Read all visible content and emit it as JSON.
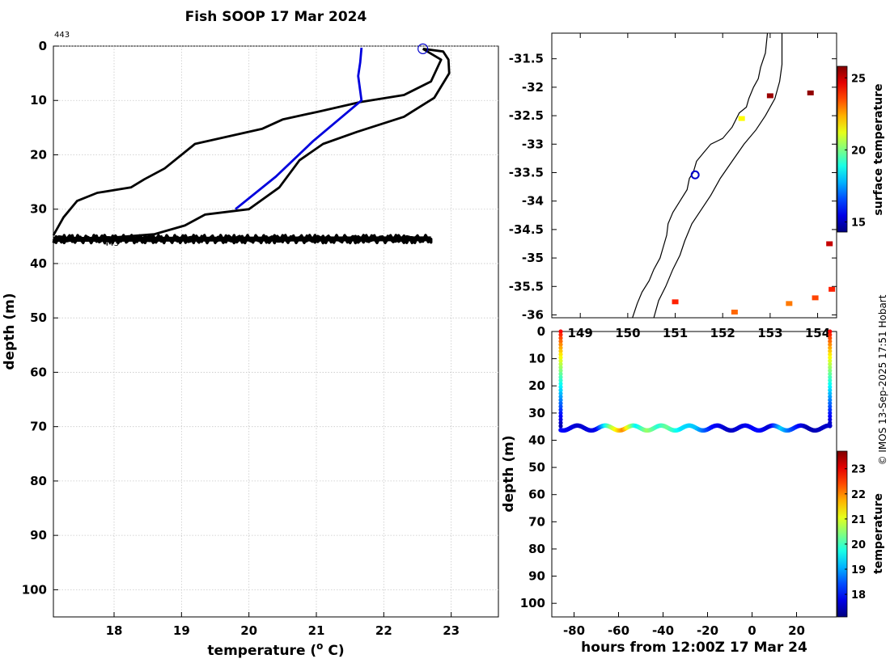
{
  "title": "Fish SOOP 17 Mar 2024",
  "credit": "© IMOS 13-Sep-2025 17:51 Hobart",
  "profile_tag": "443",
  "profile_tag_low": "443",
  "chart_data": [
    {
      "id": "profile",
      "type": "line",
      "title": "Fish SOOP 17 Mar 2024",
      "xlabel": "temperature (o C)",
      "ylabel": "depth (m)",
      "xlim": [
        17.1,
        23.7
      ],
      "ylim": [
        105,
        0
      ],
      "xticks": [
        18,
        19,
        20,
        21,
        22,
        23
      ],
      "yticks": [
        0,
        10,
        20,
        30,
        40,
        50,
        60,
        70,
        80,
        90,
        100
      ],
      "grid": true,
      "surface_marker": {
        "temperature": 22.58,
        "depth": 0.5
      },
      "series": [
        {
          "color": "#000000",
          "points": [
            [
              22.58,
              0.5
            ],
            [
              22.88,
              1.0
            ],
            [
              22.96,
              2.5
            ],
            [
              22.97,
              5.0
            ],
            [
              22.75,
              9.5
            ],
            [
              22.3,
              13.0
            ],
            [
              21.6,
              15.8
            ],
            [
              21.1,
              18.0
            ],
            [
              20.75,
              21.0
            ],
            [
              20.45,
              26.0
            ],
            [
              20.0,
              30.0
            ],
            [
              19.35,
              31.0
            ],
            [
              19.05,
              33.0
            ],
            [
              18.6,
              34.6
            ],
            [
              17.8,
              35.4
            ],
            [
              17.3,
              35.6
            ],
            [
              17.15,
              35.2
            ]
          ]
        },
        {
          "color": "#000000",
          "points": [
            [
              17.1,
              34.8
            ],
            [
              17.25,
              31.5
            ],
            [
              17.45,
              28.5
            ],
            [
              17.75,
              27.0
            ],
            [
              18.25,
              26.0
            ],
            [
              18.45,
              24.5
            ],
            [
              18.75,
              22.5
            ],
            [
              19.2,
              18.0
            ],
            [
              20.2,
              15.2
            ],
            [
              20.5,
              13.5
            ],
            [
              21.05,
              12.0
            ],
            [
              21.65,
              10.3
            ],
            [
              22.3,
              9.0
            ],
            [
              22.7,
              6.5
            ],
            [
              22.85,
              2.5
            ],
            [
              22.58,
              0.5
            ]
          ]
        },
        {
          "color": "#0000dd",
          "points": [
            [
              21.67,
              0.3
            ],
            [
              21.65,
              3.0
            ],
            [
              21.62,
              5.5
            ],
            [
              21.67,
              10.0
            ],
            [
              20.95,
              17.5
            ],
            [
              20.4,
              24.0
            ],
            [
              19.8,
              30.0
            ]
          ]
        }
      ],
      "bottom_band": {
        "depth_min": 34.8,
        "depth_max": 36.2,
        "t_min": 17.1,
        "t_max": 22.7
      }
    },
    {
      "id": "map",
      "type": "scatter",
      "xticks": [
        149,
        150,
        151,
        152,
        153,
        154
      ],
      "yticks": [
        -31.5,
        -32,
        -32.5,
        -33,
        -33.5,
        -34,
        -34.5,
        -35,
        -35.5,
        -36
      ],
      "xlim": [
        148.4,
        154.4
      ],
      "ylim": [
        -36.05,
        -31.05
      ],
      "vessel_position": {
        "lon": 151.42,
        "lat": -33.54
      },
      "colorbar": {
        "label": "surface temperature",
        "ticks": [
          15,
          20,
          25
        ],
        "range": [
          14.3,
          25.8
        ]
      },
      "sst_patches": [
        {
          "lon": 153.0,
          "lat": -32.15,
          "temp": 25.5
        },
        {
          "lon": 153.85,
          "lat": -32.1,
          "temp": 25.6
        },
        {
          "lon": 154.25,
          "lat": -34.75,
          "temp": 25.0
        },
        {
          "lon": 154.3,
          "lat": -35.55,
          "temp": 24.0
        },
        {
          "lon": 152.25,
          "lat": -35.95,
          "temp": 23.2
        },
        {
          "lon": 153.4,
          "lat": -35.8,
          "temp": 23.0
        },
        {
          "lon": 153.95,
          "lat": -35.7,
          "temp": 23.6
        },
        {
          "lon": 152.4,
          "lat": -32.55,
          "temp": 21.5
        },
        {
          "lon": 151.0,
          "lat": -35.77,
          "temp": 24.0
        }
      ]
    },
    {
      "id": "section",
      "type": "scatter",
      "xlabel": "hours from 12:00Z 17 Mar 24",
      "ylabel": "depth (m)",
      "xlim": [
        -90,
        38
      ],
      "ylim": [
        105,
        0
      ],
      "xticks": [
        -80,
        -60,
        -40,
        -20,
        0,
        20
      ],
      "yticks": [
        0,
        10,
        20,
        30,
        40,
        50,
        60,
        70,
        80,
        90,
        100
      ],
      "colorbar": {
        "label": "temperature",
        "ticks": [
          18,
          19,
          20,
          21,
          22,
          23
        ],
        "range": [
          17.1,
          23.7
        ]
      },
      "descent_hour": -86,
      "ascent_hour": 35,
      "bottom_depth": 35.5,
      "bottom_temps": [
        {
          "hour": -86,
          "temp": 18.0
        },
        {
          "hour": -78,
          "temp": 17.6
        },
        {
          "hour": -70,
          "temp": 17.8
        },
        {
          "hour": -63,
          "temp": 20.8
        },
        {
          "hour": -58,
          "temp": 22.0
        },
        {
          "hour": -52,
          "temp": 19.5
        },
        {
          "hour": -47,
          "temp": 20.6
        },
        {
          "hour": -42,
          "temp": 19.8
        },
        {
          "hour": -38,
          "temp": 20.3
        },
        {
          "hour": -32,
          "temp": 19.4
        },
        {
          "hour": -25,
          "temp": 19.2
        },
        {
          "hour": -18,
          "temp": 18.0
        },
        {
          "hour": -10,
          "temp": 17.5
        },
        {
          "hour": -3,
          "temp": 17.8
        },
        {
          "hour": 3,
          "temp": 18.0
        },
        {
          "hour": 8,
          "temp": 17.6
        },
        {
          "hour": 13,
          "temp": 19.3
        },
        {
          "hour": 18,
          "temp": 18.4
        },
        {
          "hour": 25,
          "temp": 17.4
        },
        {
          "hour": 35,
          "temp": 17.6
        }
      ]
    }
  ]
}
